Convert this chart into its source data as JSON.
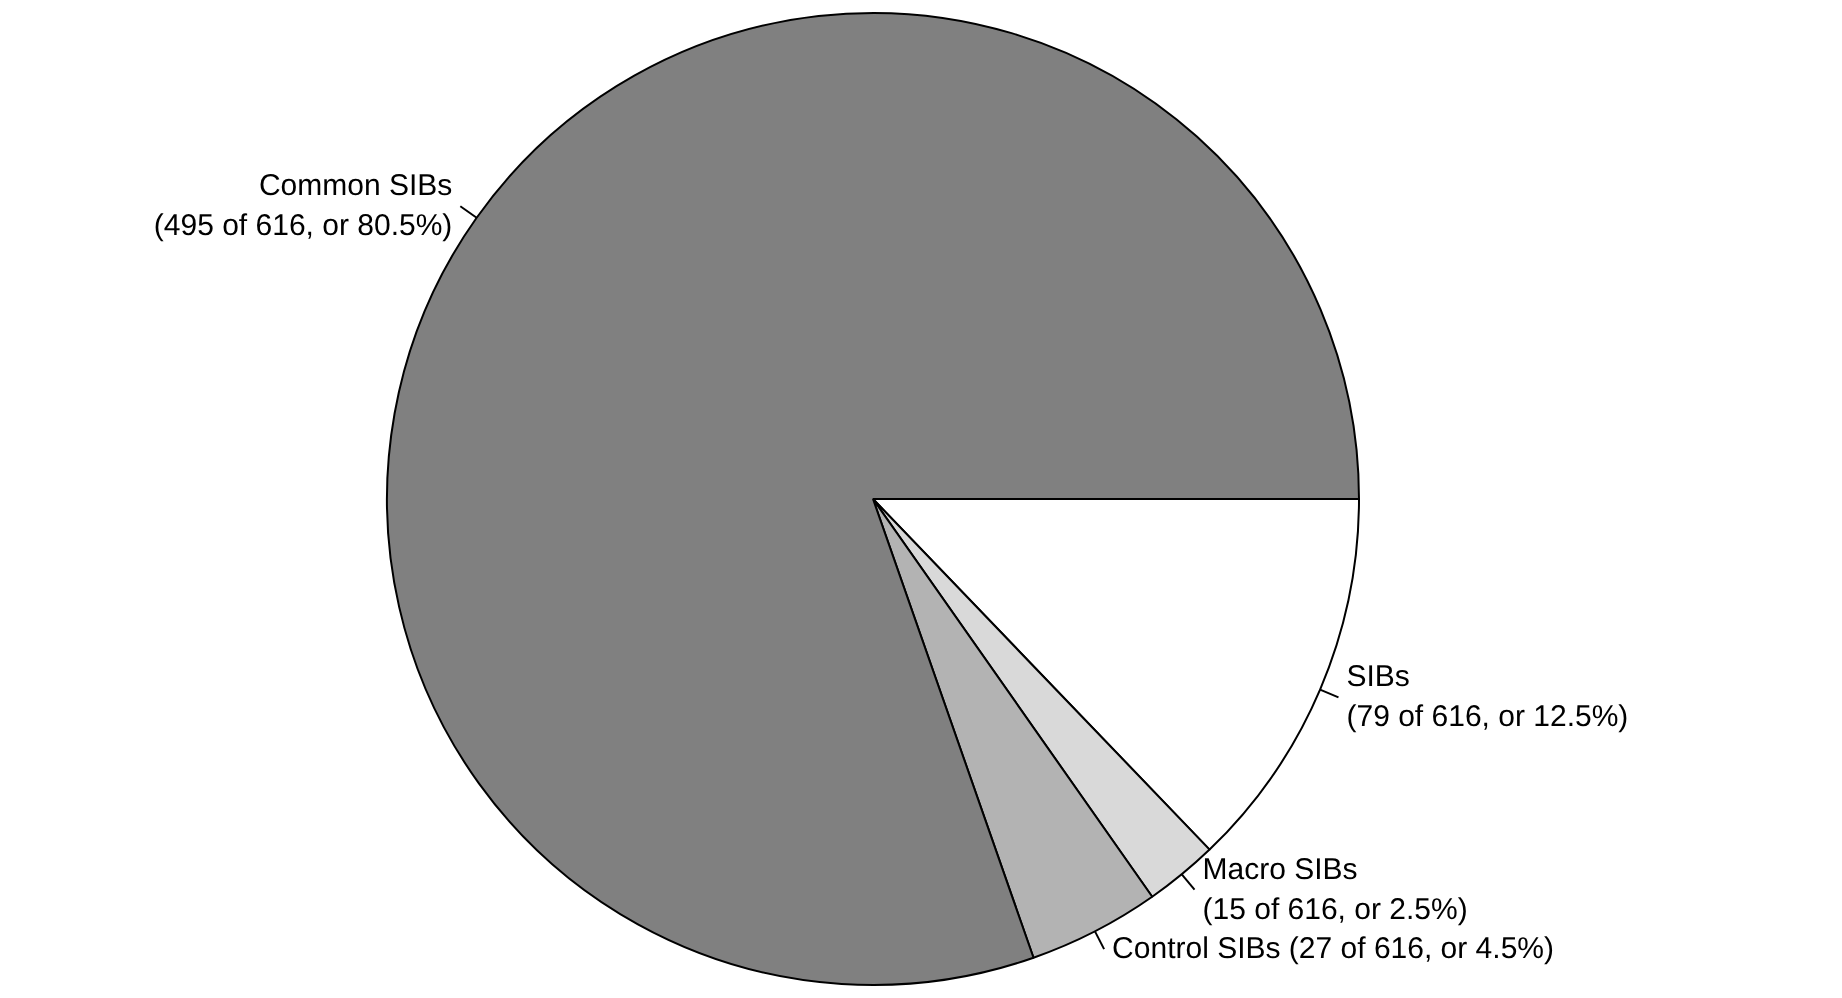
{
  "chart_data": {
    "type": "pie",
    "categories": [
      "SIBs",
      "Macro SIBs",
      "Control SIBs",
      "Common SIBs"
    ],
    "values": [
      79,
      15,
      27,
      495
    ],
    "value_labels": [
      "(79 of 616, or 12.5%)",
      "(15 of 616, or 2.5%)",
      "(27 of 616, or 4.5%)",
      "(495 of 616, or 80.5%)"
    ],
    "colors": [
      "#ffffff",
      "#d9d9d9",
      "#b3b3b3",
      "#808080"
    ]
  }
}
